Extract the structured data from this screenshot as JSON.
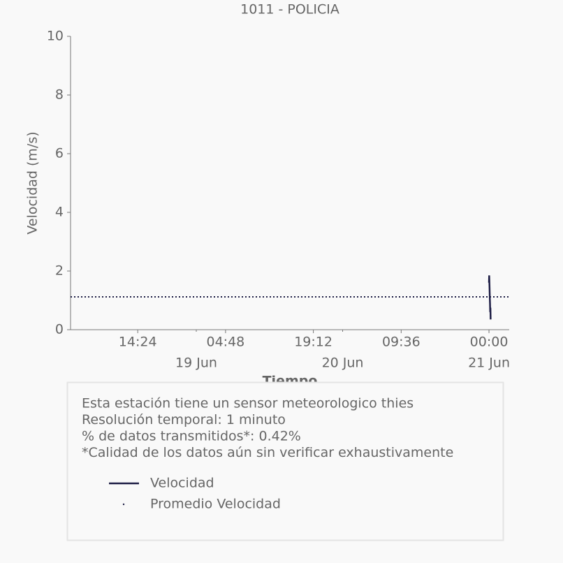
{
  "chart_data": {
    "type": "line",
    "title": "1011 - POLICIA",
    "y_label": "Velocidad (m/s)",
    "x_label": "Tiempo",
    "xlim": [
      "18 Jun 03:23",
      "21 Jun 03:19"
    ],
    "xticks": [
      {
        "value": "18 Jun 14:24",
        "label": "14:24"
      },
      {
        "value": "19 Jun 04:48",
        "label": "04:48"
      },
      {
        "value": "19 Jun 19:12",
        "label": "19:12"
      },
      {
        "value": "20 Jun 09:36",
        "label": "09:36"
      },
      {
        "value": "21 Jun 00:00",
        "label": "00:00"
      }
    ],
    "xticks_minor": [
      {
        "value": "19 Jun 00:00",
        "label": "19 Jun"
      },
      {
        "value": "20 Jun 00:00",
        "label": "20 Jun"
      },
      {
        "value": "21 Jun 00:00",
        "label": "21 Jun"
      }
    ],
    "ylim": [
      0,
      10
    ],
    "yticks": [
      0,
      2,
      4,
      6,
      8,
      10
    ],
    "series": [
      {
        "name": "Velocidad",
        "color": "#1c1c44",
        "x": [
          "21 Jun 00:00",
          "21 Jun 00:02",
          "21 Jun 00:05",
          "21 Jun 00:08",
          "21 Jun 00:10",
          "21 Jun 00:12",
          "21 Jun 00:14",
          "21 Jun 00:16"
        ],
        "values": [
          1.6,
          1.85,
          1.5,
          1.1,
          0.9,
          0.6,
          0.75,
          0.35
        ]
      }
    ],
    "mean_line": {
      "name": "Promedio Velocidad",
      "value": 1.12,
      "color": "#1c1c44"
    },
    "notes": [
      "Esta estación tiene un sensor meteorologico thies",
      "Resolución temporal: 1 minuto",
      "% de datos transmitidos*: 0.42%",
      "*Calidad de los datos aún sin verificar exhaustivamente"
    ]
  }
}
